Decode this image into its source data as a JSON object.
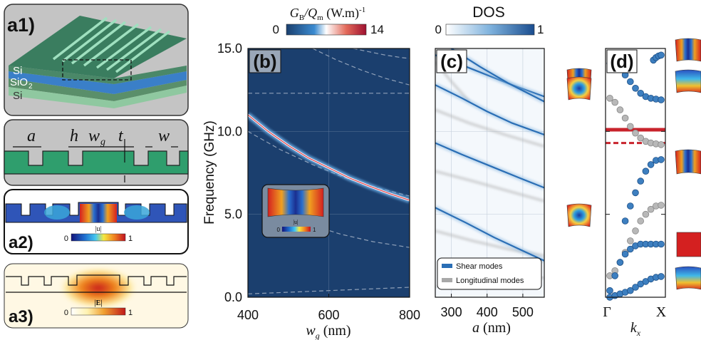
{
  "left_panels": {
    "a1": {
      "label": "a1)",
      "layers": [
        "Si",
        "SiO",
        "2",
        "Si"
      ]
    },
    "schematic": {
      "symbols": [
        "a",
        "h",
        "w",
        "g",
        "t",
        "w"
      ]
    },
    "a2": {
      "label": "a2)",
      "colorbar": {
        "title": "|u|",
        "min": "0",
        "max": "1"
      }
    },
    "a3": {
      "label": "a3)",
      "colorbar": {
        "title": "|E|",
        "min": "0",
        "max": "1"
      }
    }
  },
  "colors": {
    "map_bg": "#1b3f6e",
    "dos_blue": "#2a6eb5",
    "band_blue": "#3d7fc0",
    "gray": "#b8b8b8",
    "red": "#c8232c"
  },
  "chart_data": [
    {
      "type": "heatmap",
      "panel_label": "(b)",
      "colorbar": {
        "title_main": "G",
        "title_sub1": "B",
        "title_sep": "/Q",
        "title_sub2": "m",
        "title_units": " (W.m)",
        "title_exp": "-1",
        "min": "0",
        "max": "14"
      },
      "ylabel": "Frequency  (GHz)",
      "xlabel_main": "w",
      "xlabel_sub": "g",
      "xlabel_units": " (nm)",
      "xlim": [
        400,
        800
      ],
      "ylim": [
        0,
        15
      ],
      "xticks": [
        "400",
        "600",
        "800"
      ],
      "yticks": [
        "0.0",
        "5.0",
        "10.0",
        "15.0"
      ],
      "highlight_curve": {
        "x": [
          400,
          450,
          500,
          550,
          600,
          650,
          700,
          750,
          800
        ],
        "y": [
          11.0,
          10.0,
          9.15,
          8.4,
          7.8,
          7.2,
          6.7,
          6.25,
          5.85
        ]
      },
      "dashed_curves": [
        {
          "x": [
            400,
            500,
            600,
            700,
            800
          ],
          "y": [
            12.3,
            12.3,
            12.3,
            12.3,
            12.3
          ]
        },
        {
          "x": [
            560,
            620,
            680,
            740,
            800
          ],
          "y": [
            15.0,
            14.3,
            13.7,
            13.2,
            12.8
          ]
        },
        {
          "x": [
            660,
            700,
            740,
            780,
            800
          ],
          "y": [
            15.0,
            14.8,
            14.6,
            14.45,
            14.4
          ]
        },
        {
          "x": [
            400,
            480,
            560,
            640,
            720,
            800
          ],
          "y": [
            10.0,
            8.9,
            8.0,
            7.2,
            6.6,
            6.1
          ]
        },
        {
          "x": [
            470,
            550,
            630,
            710,
            800
          ],
          "y": [
            5.2,
            4.4,
            3.8,
            3.35,
            3.0
          ]
        },
        {
          "x": [
            400,
            500,
            600,
            700,
            800
          ],
          "y": [
            0.2,
            0.3,
            0.4,
            0.5,
            0.6
          ]
        }
      ],
      "inset_colorbar": {
        "title": "|u|",
        "min": "0",
        "max": "1"
      }
    },
    {
      "type": "heatmap",
      "panel_label": "(c)",
      "colorbar": {
        "title": "DOS",
        "min": "0",
        "max": "1"
      },
      "xlabel_main": "a",
      "xlabel_units": " (nm)",
      "xlim": [
        255,
        560
      ],
      "ylim": [
        0,
        15
      ],
      "xticks": [
        "300",
        "400",
        "500"
      ],
      "legend": {
        "position": "bottom-left",
        "entries": [
          {
            "name": "Shear modes",
            "color": "#2a6eb5"
          },
          {
            "name": "Longitudinal modes",
            "color": "#a8a8a8"
          }
        ]
      },
      "shear_curves": [
        {
          "x": [
            255,
            330,
            400,
            470,
            560
          ],
          "y": [
            14.6,
            14.0,
            13.4,
            12.8,
            12.1
          ]
        },
        {
          "x": [
            255,
            330,
            400,
            470,
            560
          ],
          "y": [
            12.8,
            12.0,
            11.2,
            10.5,
            9.8
          ]
        },
        {
          "x": [
            300,
            380,
            460,
            560
          ],
          "y": [
            15.0,
            13.9,
            12.9,
            11.8
          ]
        },
        {
          "x": [
            255,
            330,
            410,
            490,
            560
          ],
          "y": [
            9.3,
            8.6,
            7.9,
            7.2,
            6.6
          ]
        },
        {
          "x": [
            255,
            340,
            420,
            500,
            560
          ],
          "y": [
            5.4,
            4.5,
            3.6,
            2.8,
            2.2
          ]
        }
      ],
      "long_curves": [
        {
          "x": [
            255,
            300,
            350
          ],
          "y": [
            14.2,
            13.0,
            11.8
          ]
        },
        {
          "x": [
            255,
            350,
            450,
            560
          ],
          "y": [
            11.3,
            10.5,
            9.8,
            9.1
          ]
        },
        {
          "x": [
            255,
            360,
            460,
            560
          ],
          "y": [
            7.6,
            7.0,
            6.4,
            5.8
          ]
        },
        {
          "x": [
            255,
            360,
            460,
            560
          ],
          "y": [
            4.0,
            3.4,
            2.9,
            2.5
          ]
        },
        {
          "x": [
            255,
            400,
            560
          ],
          "y": [
            0.6,
            0.9,
            1.2
          ]
        }
      ]
    },
    {
      "type": "scatter",
      "panel_label": "(d)",
      "xlabel_main": "k",
      "xlabel_sub": "x",
      "xticks": [
        "Γ",
        "X"
      ],
      "xlim": [
        0,
        1
      ],
      "ylim": [
        0,
        15
      ],
      "red_line_y": 10.1,
      "red_dashed_y": 9.3,
      "series": [
        {
          "color": "#3d7fc0",
          "x": [
            0.85,
            0.9,
            0.95,
            1.0
          ],
          "y": [
            14.3,
            14.45,
            14.55,
            14.6
          ]
        },
        {
          "color": "#3d7fc0",
          "x": [
            0.0,
            0.1,
            0.2,
            0.3,
            0.4,
            0.5,
            0.6,
            0.7,
            0.8,
            0.9,
            1.0
          ],
          "y": [
            14.1,
            14.0,
            13.75,
            13.4,
            13.0,
            12.6,
            12.3,
            12.1,
            12.0,
            11.95,
            11.9
          ]
        },
        {
          "color": "#b8b8b8",
          "x": [
            0.0,
            0.1,
            0.2,
            0.3,
            0.4,
            0.5,
            0.6,
            0.7,
            0.8,
            0.9,
            1.0
          ],
          "y": [
            12.0,
            11.75,
            11.3,
            10.8,
            10.3,
            9.9,
            9.6,
            9.4,
            9.3,
            9.25,
            9.2
          ]
        },
        {
          "color": "#3d7fc0",
          "x": [
            0.3,
            0.4,
            0.5,
            0.6,
            0.7,
            0.8,
            0.9,
            1.0
          ],
          "y": [
            4.6,
            5.5,
            6.3,
            7.0,
            7.6,
            8.0,
            8.25,
            8.3
          ]
        },
        {
          "color": "#b8b8b8",
          "x": [
            0.0,
            0.1,
            0.2,
            0.3,
            0.4,
            0.5,
            0.6,
            0.7,
            0.8,
            0.9,
            1.0
          ],
          "y": [
            1.3,
            1.6,
            2.1,
            2.7,
            3.4,
            4.0,
            4.6,
            5.0,
            5.3,
            5.5,
            5.55
          ]
        },
        {
          "color": "#3d7fc0",
          "x": [
            0.0,
            0.1,
            0.2,
            0.3,
            0.4,
            0.5,
            0.6,
            0.7,
            0.8,
            0.9,
            1.0
          ],
          "y": [
            0.4,
            1.3,
            2.1,
            2.6,
            2.9,
            3.1,
            3.2,
            3.2,
            3.2,
            3.2,
            3.2
          ]
        },
        {
          "color": "#3d7fc0",
          "x": [
            0.0,
            0.1,
            0.2,
            0.3,
            0.4,
            0.5,
            0.6,
            0.7,
            0.8,
            0.9,
            1.0
          ],
          "y": [
            0.0,
            0.1,
            0.2,
            0.3,
            0.4,
            0.6,
            0.8,
            0.95,
            1.1,
            1.2,
            1.25
          ]
        }
      ]
    }
  ]
}
